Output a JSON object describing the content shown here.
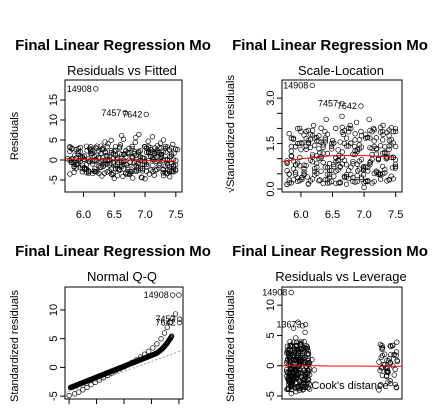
{
  "chart_data": [
    {
      "type": "scatter",
      "main_title": "Final Linear Regression Mo",
      "title": "Residuals vs Fitted",
      "xlabel": "",
      "ylabel": "Residuals",
      "xlim": [
        5.7,
        7.6
      ],
      "ylim": [
        -8,
        20
      ],
      "xticks": [
        6.0,
        6.5,
        7.0,
        7.5
      ],
      "xtick_labels": [
        "6.0",
        "6.5",
        "7.0",
        "7.5"
      ],
      "yticks": [
        -5,
        0,
        5,
        10,
        15
      ],
      "ytick_labels": [
        "-5",
        "0",
        "5",
        "10",
        "15"
      ],
      "points": [
        [
          5.74,
          0.3
        ],
        [
          5.8,
          -0.6
        ],
        [
          5.86,
          1.2
        ],
        [
          5.9,
          -1.1
        ],
        [
          5.95,
          0.9
        ],
        [
          6.0,
          0.2
        ],
        [
          6.03,
          -2.1
        ],
        [
          6.06,
          2.3
        ],
        [
          6.1,
          -0.4
        ],
        [
          6.13,
          1.6
        ],
        [
          6.17,
          -2.8
        ],
        [
          6.2,
          3.1
        ],
        [
          6.24,
          0.6
        ],
        [
          6.27,
          -1.9
        ],
        [
          6.3,
          2.7
        ],
        [
          6.34,
          -3.3
        ],
        [
          6.37,
          1.1
        ],
        [
          6.4,
          4.1
        ],
        [
          6.44,
          -0.8
        ],
        [
          6.47,
          -3.7
        ],
        [
          6.5,
          2.2
        ],
        [
          6.54,
          0.1
        ],
        [
          6.57,
          -2.4
        ],
        [
          6.6,
          3.8
        ],
        [
          6.64,
          -4.1
        ],
        [
          6.67,
          1.5
        ],
        [
          6.7,
          -1.2
        ],
        [
          6.74,
          2.9
        ],
        [
          6.77,
          -3.0
        ],
        [
          6.8,
          0.7
        ],
        [
          6.84,
          4.4
        ],
        [
          6.87,
          -2.0
        ],
        [
          6.9,
          1.9
        ],
        [
          6.94,
          -4.3
        ],
        [
          6.97,
          0.4
        ],
        [
          7.0,
          3.3
        ],
        [
          7.03,
          -1.6
        ],
        [
          7.07,
          -3.5
        ],
        [
          7.1,
          2.5
        ],
        [
          7.14,
          0.0
        ],
        [
          7.17,
          -2.6
        ],
        [
          7.2,
          3.6
        ],
        [
          7.24,
          -0.9
        ],
        [
          7.27,
          1.4
        ],
        [
          7.3,
          -3.9
        ],
        [
          7.34,
          2.0
        ],
        [
          7.37,
          -1.3
        ],
        [
          7.4,
          0.8
        ],
        [
          7.44,
          -2.9
        ],
        [
          7.47,
          1.7
        ],
        [
          7.5,
          -0.2
        ],
        [
          7.53,
          2.6
        ],
        [
          6.2,
          -2.9
        ],
        [
          6.3,
          -4.0
        ],
        [
          6.45,
          4.9
        ],
        [
          6.55,
          -3.9
        ],
        [
          6.65,
          5.2
        ],
        [
          6.75,
          -3.6
        ],
        [
          6.85,
          5.6
        ],
        [
          6.95,
          -4.4
        ],
        [
          7.05,
          4.7
        ],
        [
          7.15,
          -3.8
        ],
        [
          7.25,
          4.2
        ],
        [
          7.35,
          -3.4
        ],
        [
          7.45,
          3.9
        ],
        [
          6.35,
          4.5
        ],
        [
          6.62,
          6.1
        ],
        [
          6.9,
          6.4
        ],
        [
          7.12,
          5.8
        ],
        [
          7.3,
          5.0
        ],
        [
          6.5,
          -4.6
        ],
        [
          7.0,
          -4.7
        ],
        [
          7.4,
          -4.2
        ],
        [
          6.1,
          2.9
        ],
        [
          6.8,
          -4.5
        ]
      ],
      "labeled_points": [
        {
          "x": 6.2,
          "y": 17.8,
          "label": "14908"
        },
        {
          "x": 6.68,
          "y": 11.8,
          "label": "7457"
        },
        {
          "x": 7.02,
          "y": 11.4,
          "label": "7642"
        }
      ],
      "line": {
        "x": [
          5.7,
          6.0,
          6.5,
          7.0,
          7.5
        ],
        "y": [
          0.3,
          0.2,
          0.05,
          -0.1,
          -0.25
        ],
        "color": "#ff0000"
      }
    },
    {
      "type": "scatter",
      "main_title": "Final Linear Regression Mo",
      "title": "Scale-Location",
      "xlabel": "",
      "ylabel": "√Standardized residuals",
      "xlim": [
        5.7,
        7.6
      ],
      "ylim": [
        -0.1,
        3.6
      ],
      "xticks": [
        6.0,
        6.5,
        7.0,
        7.5
      ],
      "xtick_labels": [
        "6.0",
        "6.5",
        "7.0",
        "7.5"
      ],
      "yticks": [
        0.0,
        0.5,
        1.0,
        1.5,
        2.0,
        2.5,
        3.0
      ],
      "ytick_labels": [
        "0.0",
        "",
        "",
        "1.5",
        "",
        "",
        "3.0"
      ],
      "points": [
        [
          5.78,
          0.6
        ],
        [
          5.85,
          1.1
        ],
        [
          5.92,
          0.8
        ],
        [
          6.0,
          1.3
        ],
        [
          6.05,
          0.5
        ],
        [
          6.12,
          1.5
        ],
        [
          6.18,
          0.9
        ],
        [
          6.25,
          1.7
        ],
        [
          6.3,
          1.2
        ],
        [
          6.38,
          1.9
        ],
        [
          6.42,
          0.7
        ],
        [
          6.5,
          1.6
        ],
        [
          6.55,
          2.0
        ],
        [
          6.6,
          1.1
        ],
        [
          6.67,
          1.8
        ],
        [
          6.72,
          0.4
        ],
        [
          6.78,
          2.1
        ],
        [
          6.85,
          1.4
        ],
        [
          6.9,
          0.6
        ],
        [
          6.95,
          1.9
        ],
        [
          7.0,
          0.2
        ],
        [
          7.05,
          1.7
        ],
        [
          7.1,
          0.9
        ],
        [
          7.15,
          2.0
        ],
        [
          7.2,
          1.3
        ],
        [
          7.25,
          0.5
        ],
        [
          7.3,
          1.8
        ],
        [
          7.35,
          1.0
        ],
        [
          7.4,
          1.6
        ],
        [
          7.45,
          0.7
        ],
        [
          7.5,
          1.4
        ],
        [
          6.4,
          2.3
        ],
        [
          6.65,
          2.4
        ],
        [
          6.88,
          2.2
        ],
        [
          7.08,
          2.3
        ],
        [
          7.3,
          2.1
        ],
        [
          6.2,
          2.1
        ],
        [
          6.0,
          1.9
        ],
        [
          7.5,
          1.9
        ],
        [
          6.3,
          0.3
        ],
        [
          6.6,
          0.2
        ],
        [
          7.0,
          0.05
        ],
        [
          7.4,
          0.3
        ],
        [
          6.1,
          0.4
        ]
      ],
      "labeled_points": [
        {
          "x": 6.18,
          "y": 3.42,
          "label": "14908"
        },
        {
          "x": 6.65,
          "y": 2.82,
          "label": "7457"
        },
        {
          "x": 6.95,
          "y": 2.74,
          "label": "7642"
        }
      ],
      "line": {
        "x": [
          5.7,
          6.0,
          6.5,
          7.0,
          7.5
        ],
        "y": [
          0.9,
          1.0,
          1.1,
          1.1,
          1.05
        ],
        "color": "#ff0000"
      }
    },
    {
      "type": "scatter",
      "main_title": "Final Linear Regression Mo",
      "title": "Normal Q-Q",
      "xlabel": "",
      "ylabel": "Standardized residuals",
      "xlim": [
        -4.3,
        4.3
      ],
      "ylim": [
        -5.5,
        14
      ],
      "xticks": [
        -4,
        -2,
        0,
        2,
        4
      ],
      "xtick_labels": [],
      "yticks": [
        -5,
        0,
        5,
        10
      ],
      "ytick_labels": [
        "-5",
        "0",
        "5",
        "10"
      ],
      "points": [
        [
          -4.0,
          -4.9
        ],
        [
          -3.6,
          -4.6
        ],
        [
          -3.3,
          -4.3
        ],
        [
          -3.0,
          -3.9
        ],
        [
          -2.7,
          -3.5
        ],
        [
          -2.4,
          -3.0
        ],
        [
          -2.1,
          -2.6
        ],
        [
          -1.8,
          -2.2
        ],
        [
          -1.5,
          -1.8
        ],
        [
          -1.2,
          -1.4
        ],
        [
          -0.9,
          -1.0
        ],
        [
          -0.6,
          -0.6
        ],
        [
          -0.3,
          -0.25
        ],
        [
          0.0,
          0.1
        ],
        [
          0.3,
          0.5
        ],
        [
          0.6,
          0.9
        ],
        [
          0.9,
          1.3
        ],
        [
          1.2,
          1.8
        ],
        [
          1.5,
          2.3
        ],
        [
          1.8,
          2.8
        ],
        [
          2.1,
          3.4
        ],
        [
          2.4,
          4.1
        ],
        [
          2.7,
          5.0
        ],
        [
          2.95,
          6.0
        ],
        [
          3.15,
          7.0
        ],
        [
          3.35,
          7.8
        ],
        [
          3.55,
          8.5
        ],
        [
          3.75,
          9.3
        ],
        [
          4.0,
          12.6
        ]
      ],
      "labeled_points": [
        {
          "x": 3.55,
          "y": 12.6,
          "label": "14908"
        },
        {
          "x": 4.05,
          "y": 8.4,
          "label": "7457"
        },
        {
          "x": 4.05,
          "y": 7.8,
          "label": "7642"
        }
      ],
      "refline": {
        "x": [
          -4.3,
          4.3
        ],
        "y": [
          -4.4,
          3.0
        ],
        "color": "#808080"
      }
    },
    {
      "type": "scatter",
      "main_title": "Final Linear Regression Mo",
      "title": "Residuals vs Leverage",
      "xlabel": "",
      "ylabel": "Standardized residuals",
      "xlim": [
        -0.02,
        0.5
      ],
      "ylim": [
        -5.5,
        13
      ],
      "yticks": [
        -5,
        0,
        5,
        10
      ],
      "ytick_labels": [
        "-5",
        "0",
        "5",
        "10"
      ],
      "annotation": "Cook's distance",
      "points": [
        [
          0.0,
          0.5
        ],
        [
          0.005,
          -1.2
        ],
        [
          0.01,
          2.1
        ],
        [
          0.015,
          -2.8
        ],
        [
          0.02,
          3.4
        ],
        [
          0.025,
          -0.6
        ],
        [
          0.03,
          1.5
        ],
        [
          0.035,
          -3.6
        ],
        [
          0.04,
          4.6
        ],
        [
          0.045,
          -1.9
        ],
        [
          0.05,
          2.7
        ],
        [
          0.055,
          -4.1
        ],
        [
          0.06,
          0.9
        ],
        [
          0.065,
          3.9
        ],
        [
          0.07,
          -2.3
        ],
        [
          0.075,
          1.2
        ],
        [
          0.08,
          5.5
        ],
        [
          0.085,
          -3.1
        ],
        [
          0.09,
          0.3
        ],
        [
          0.095,
          2.0
        ],
        [
          0.1,
          -1.5
        ],
        [
          0.11,
          1.0
        ],
        [
          0.12,
          -0.7
        ],
        [
          0.02,
          -4.6
        ],
        [
          0.04,
          -4.3
        ],
        [
          0.03,
          6.2
        ],
        [
          0.05,
          7.2
        ],
        [
          0.07,
          6.6
        ],
        [
          0.06,
          -3.8
        ],
        [
          0.09,
          3.1
        ],
        [
          0.4,
          0.6
        ],
        [
          0.405,
          -0.8
        ],
        [
          0.41,
          1.4
        ],
        [
          0.415,
          -1.6
        ],
        [
          0.42,
          0.2
        ],
        [
          0.425,
          1.9
        ],
        [
          0.43,
          -0.3
        ],
        [
          0.435,
          0.9
        ],
        [
          0.44,
          -1.1
        ],
        [
          0.45,
          0.5
        ],
        [
          0.46,
          0.0
        ],
        [
          0.47,
          -0.6
        ],
        [
          0.48,
          0.7
        ]
      ],
      "labeled_points": [
        {
          "x": 0.02,
          "y": 12.1,
          "label": "14908"
        },
        {
          "x": 0.082,
          "y": 6.8,
          "label": "13673"
        }
      ],
      "line": {
        "x": [
          -0.02,
          0.1,
          0.2,
          0.3,
          0.4,
          0.5
        ],
        "y": [
          0.0,
          0.0,
          -0.05,
          -0.05,
          -0.1,
          -0.1
        ],
        "color": "#ff0000"
      }
    }
  ]
}
